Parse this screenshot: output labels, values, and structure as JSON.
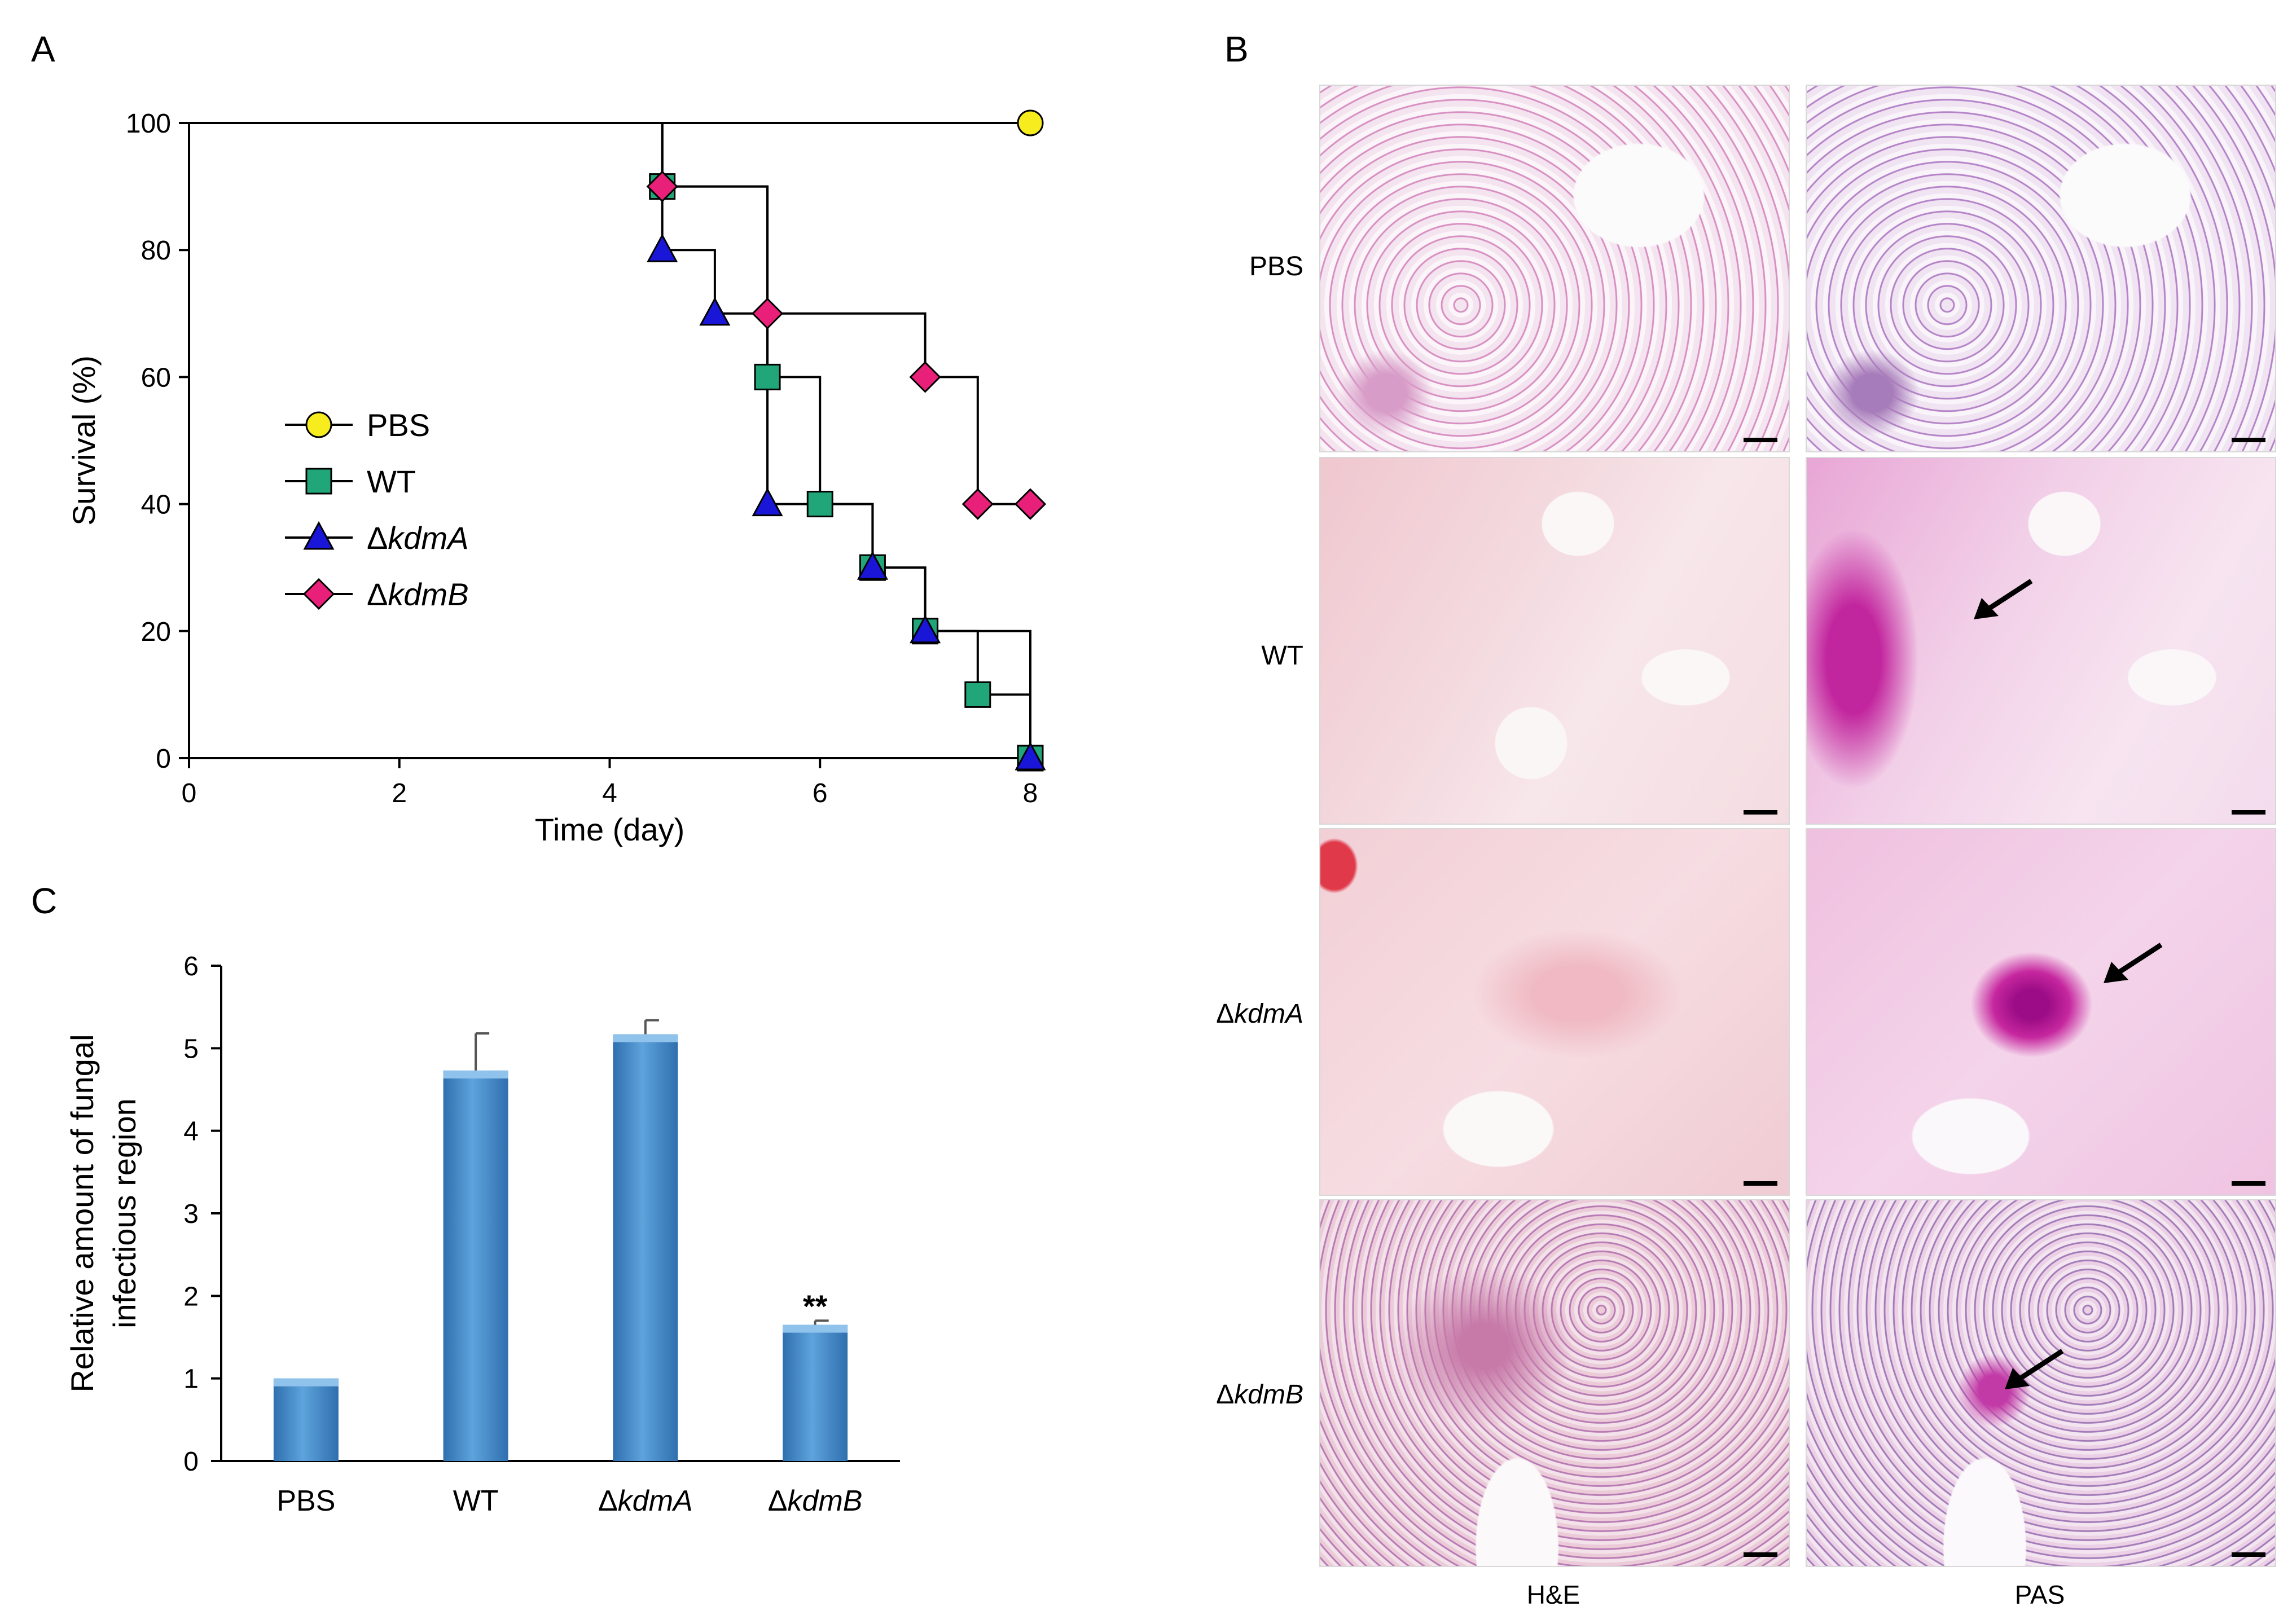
{
  "panels": {
    "a": "A",
    "b": "B",
    "c": "C"
  },
  "colors": {
    "pbs_marker": "#f7ec1e",
    "wt_marker": "#21a67a",
    "kdmA_marker": "#1a16d8",
    "kdmB_marker": "#e8207a",
    "bar_fill": "#5ea3dc",
    "bar_dark": "#2f6fae"
  },
  "chart_data": [
    {
      "type": "line",
      "subtype": "kaplan-meier",
      "xlabel": "Time (day)",
      "ylabel": "Survival (%)",
      "xlim": [
        0,
        8
      ],
      "ylim": [
        0,
        100
      ],
      "xticks": [
        "0",
        "2",
        "4",
        "6",
        "8"
      ],
      "yticks": [
        "0",
        "20",
        "40",
        "60",
        "80",
        "100"
      ],
      "legend_position": "center-left",
      "series": [
        {
          "name": "PBS",
          "prefix": "",
          "italic": "",
          "marker": "circle",
          "x": [
            0,
            8
          ],
          "y": [
            100,
            100
          ],
          "points": [
            [
              8,
              100
            ]
          ]
        },
        {
          "name": "WT",
          "prefix": "",
          "italic": "",
          "marker": "square",
          "x": [
            0,
            4.5,
            5.5,
            6,
            6.5,
            7,
            7.5,
            8
          ],
          "y": [
            100,
            90,
            60,
            40,
            30,
            20,
            10,
            0
          ],
          "points": [
            [
              4.5,
              90
            ],
            [
              5.5,
              60
            ],
            [
              6,
              40
            ],
            [
              6.5,
              30
            ],
            [
              7,
              20
            ],
            [
              7.5,
              10
            ],
            [
              8,
              0
            ]
          ]
        },
        {
          "name": "ΔkdmA",
          "prefix": "Δ",
          "italic": "kdmA",
          "marker": "triangle",
          "x": [
            0,
            4.5,
            5,
            5.5,
            6.5,
            7,
            8
          ],
          "y": [
            100,
            80,
            70,
            40,
            30,
            20,
            0
          ],
          "points": [
            [
              4.5,
              80
            ],
            [
              5,
              70
            ],
            [
              5.5,
              40
            ],
            [
              6.5,
              30
            ],
            [
              7,
              20
            ],
            [
              8,
              0
            ]
          ]
        },
        {
          "name": "ΔkdmB",
          "prefix": "Δ",
          "italic": "kdmB",
          "marker": "diamond",
          "x": [
            0,
            4.5,
            5.5,
            7,
            7.5,
            8
          ],
          "y": [
            100,
            90,
            70,
            60,
            40,
            40
          ],
          "points": [
            [
              4.5,
              90
            ],
            [
              5.5,
              70
            ],
            [
              7,
              60
            ],
            [
              7.5,
              40
            ],
            [
              8,
              40
            ]
          ]
        }
      ]
    },
    {
      "type": "bar",
      "ylabel_line1": "Relative amount of fungal",
      "ylabel_line2": "infectious region",
      "ylim": [
        0,
        6
      ],
      "yticks": [
        "0",
        "1",
        "2",
        "3",
        "4",
        "5",
        "6"
      ],
      "categories": [
        {
          "label": "PBS",
          "prefix": "",
          "italic": ""
        },
        {
          "label": "WT",
          "prefix": "",
          "italic": ""
        },
        {
          "label": "ΔkdmA",
          "prefix": "Δ",
          "italic": "kdmA"
        },
        {
          "label": "ΔkdmB",
          "prefix": "Δ",
          "italic": "kdmB"
        }
      ],
      "values": [
        1.0,
        4.73,
        5.17,
        1.65
      ],
      "errors": [
        0.0,
        0.45,
        0.17,
        0.05
      ],
      "annotations": [
        "",
        "",
        "",
        "**"
      ]
    }
  ],
  "histology": {
    "rows": [
      {
        "label": "PBS",
        "prefix": "",
        "italic": ""
      },
      {
        "label": "WT",
        "prefix": "",
        "italic": ""
      },
      {
        "label": "ΔkdmA",
        "prefix": "Δ",
        "italic": "kdmA"
      },
      {
        "label": "ΔkdmB",
        "prefix": "Δ",
        "italic": "kdmB"
      }
    ],
    "columns": [
      "H&E",
      "PAS"
    ]
  }
}
